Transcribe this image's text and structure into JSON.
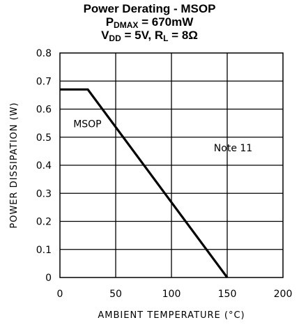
{
  "header": {
    "title": "Power Derating - MSOP",
    "line2": {
      "p": "P",
      "sub": "DMAX",
      "rest": " = 670mW"
    },
    "line3": {
      "v": "V",
      "vsub": "DD",
      "mid": " = 5V, R",
      "rsub": "L",
      "rest": " = 8Ω"
    }
  },
  "chart_data": {
    "type": "line",
    "title": "Power Derating - MSOP",
    "subtitle": [
      "PDMAX = 670mW",
      "VDD = 5V, RL = 8Ω"
    ],
    "xlabel": "AMBIENT TEMPERATURE (°C)",
    "ylabel": "POWER DISSIPATION (W)",
    "xlim": [
      0,
      200
    ],
    "ylim": [
      0,
      0.8
    ],
    "xticks": [
      0,
      50,
      100,
      150,
      200
    ],
    "yticks": [
      0,
      0.1,
      0.2,
      0.3,
      0.4,
      0.5,
      0.6,
      0.7,
      0.8
    ],
    "xtick_labels": [
      "0",
      "50",
      "100",
      "150",
      "200"
    ],
    "ytick_labels": [
      "0",
      "0.1",
      "0.2",
      "0.3",
      "0.4",
      "0.5",
      "0.6",
      "0.7",
      "0.8"
    ],
    "grid": true,
    "series": [
      {
        "name": "MSOP",
        "x": [
          0,
          25,
          150
        ],
        "y": [
          0.67,
          0.67,
          0
        ]
      }
    ],
    "annotations": [
      {
        "text": "MSOP",
        "x": 12,
        "y": 0.535
      },
      {
        "text": "Note 11",
        "x": 138,
        "y": 0.45
      }
    ]
  },
  "colors": {
    "line": "#000000",
    "grid": "#000000",
    "background": "#ffffff"
  }
}
